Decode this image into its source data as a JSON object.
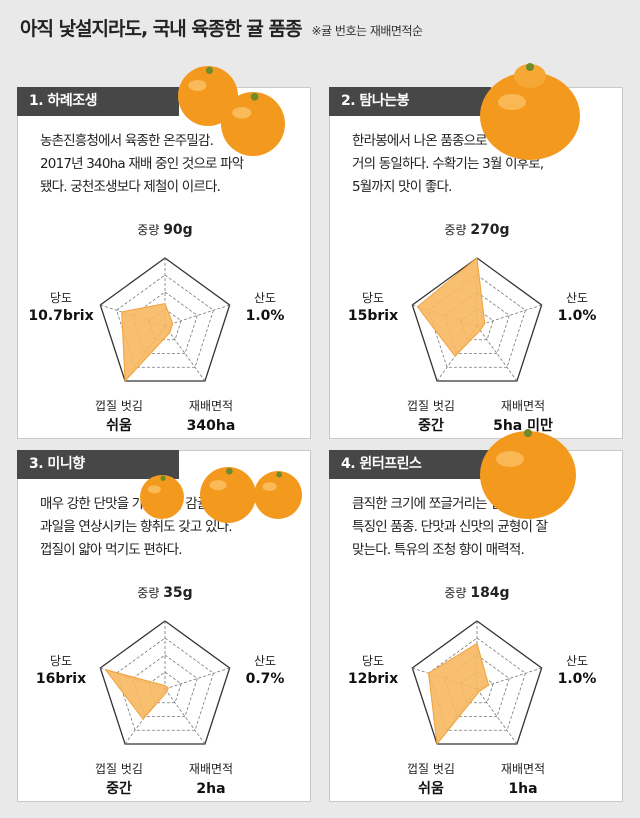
{
  "header": {
    "title": "아직 낯설지라도, 국내 육종한 귤 품종",
    "note": "※귤 번호는 재배면적순"
  },
  "colors": {
    "background": "#e9e9e9",
    "card": "#ffffff",
    "label_bg": "#474747",
    "radar_fill": "#f7b862",
    "radar_stroke": "#f0a23c",
    "fruit": "#f39a1e"
  },
  "axis_names": {
    "weight": "중량",
    "acidity": "산도",
    "area": "재배면적",
    "peel": "껍질 벗김",
    "sugar": "당도"
  },
  "cards": [
    {
      "label": "1. 하례조생",
      "desc": "농촌진흥청에서 육종한 온주밀감.\n2017년 340ha 재배 중인 것으로 파악\n됐다. 궁천조생보다 제철이 이르다.",
      "fruit_icon": "tangerine-pair-icon",
      "values": {
        "weight": "90g",
        "acidity": "1.0%",
        "area": "340ha",
        "peel": "쉬움",
        "sugar": "10.7brix"
      }
    },
    {
      "label": "2. 탐나는봉",
      "desc": "한라봉에서 나온 품종으로 생김새는\n거의 동일하다. 수확기는 3월 이후로,\n5월까지 맛이 좋다.",
      "fruit_icon": "hallabong-icon",
      "values": {
        "weight": "270g",
        "acidity": "1.0%",
        "area": "5ha 미만",
        "peel": "중간",
        "sugar": "15brix"
      }
    },
    {
      "label": "3. 미니향",
      "desc": "매우 강한 단맛을 가진 미니 감귤. 열대\n과일을 연상시키는 향취도 갖고 있다.\n껍질이 얇아 먹기도 편하다.",
      "fruit_icon": "mini-tangerines-icon",
      "values": {
        "weight": "35g",
        "acidity": "0.7%",
        "area": "2ha",
        "peel": "중간",
        "sugar": "16brix"
      }
    },
    {
      "label": "4. 윈터프린스",
      "desc": "큼직한 크기에 쪼글거리는 겉껍질이\n특징인 품종. 단맛과 신맛의 균형이 잘\n맞는다. 특유의 조청 향이 매력적.",
      "fruit_icon": "winter-prince-icon",
      "values": {
        "weight": "184g",
        "acidity": "1.0%",
        "area": "1ha",
        "peel": "쉬움",
        "sugar": "12brix"
      }
    }
  ],
  "chart_data": [
    {
      "type": "radar",
      "title": "1. 하례조생",
      "axes": [
        "중량",
        "산도",
        "재배면적",
        "껍질 벗김",
        "당도"
      ],
      "values": [
        0.33,
        0.12,
        0.12,
        1.0,
        0.67
      ],
      "max": 1,
      "rings": 4
    },
    {
      "type": "radar",
      "title": "2. 탐나는봉",
      "axes": [
        "중량",
        "산도",
        "재배면적",
        "껍질 벗김",
        "당도"
      ],
      "values": [
        1.0,
        0.12,
        0.08,
        0.55,
        0.92
      ],
      "max": 1,
      "rings": 4
    },
    {
      "type": "radar",
      "title": "3. 미니향",
      "axes": [
        "중량",
        "산도",
        "재배면적",
        "껍질 벗김",
        "당도"
      ],
      "values": [
        0.05,
        0.05,
        0.05,
        0.55,
        0.92
      ],
      "max": 1,
      "rings": 4
    },
    {
      "type": "radar",
      "title": "4. 윈터프린스",
      "axes": [
        "중량",
        "산도",
        "재배면적",
        "껍질 벗김",
        "당도"
      ],
      "values": [
        0.67,
        0.18,
        0.05,
        1.0,
        0.75
      ],
      "max": 1,
      "rings": 4
    }
  ]
}
